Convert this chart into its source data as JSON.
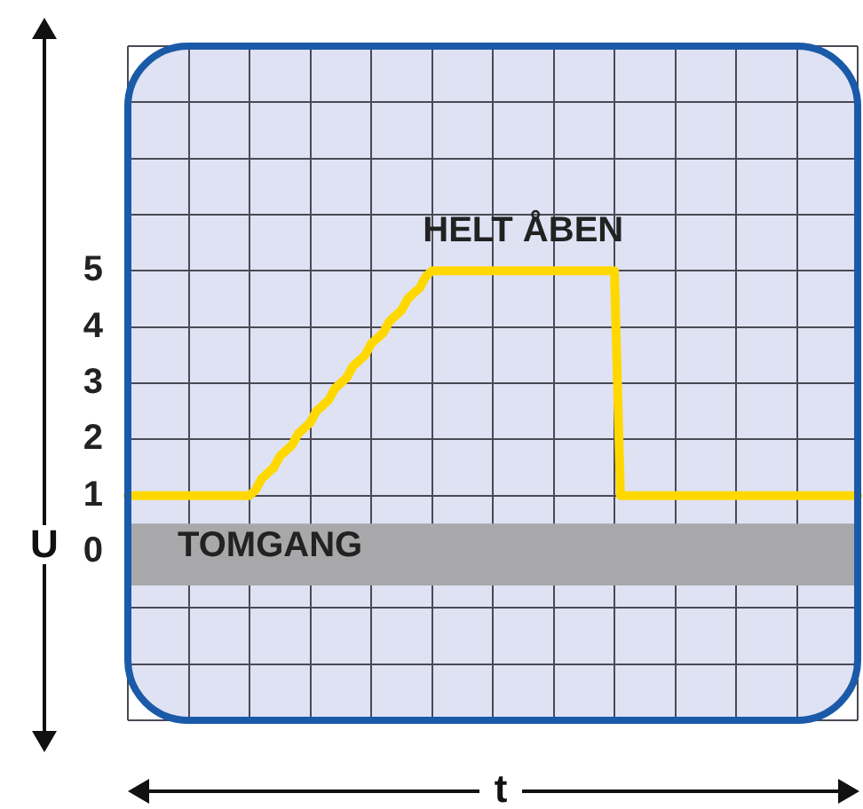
{
  "chart_data": {
    "type": "line",
    "xlabel": "t",
    "ylabel": "U",
    "categories": [
      null,
      null,
      null,
      null,
      null,
      null,
      null,
      null,
      null,
      null,
      null,
      null,
      null,
      null,
      null,
      null,
      null,
      null,
      null,
      null,
      null,
      null,
      null,
      null,
      null,
      null,
      null,
      null,
      null,
      null,
      null,
      null,
      null,
      null,
      null,
      null,
      null,
      null,
      null,
      null,
      null,
      null,
      null,
      null,
      null,
      null,
      null,
      null,
      null,
      null,
      null,
      null,
      null,
      null,
      null,
      null,
      null,
      null,
      null,
      null,
      null,
      null,
      null,
      null,
      null,
      null,
      null,
      null,
      null,
      null,
      null,
      null,
      null,
      null,
      null,
      null,
      null,
      null,
      null,
      null,
      null,
      null,
      null,
      null,
      null,
      null,
      null,
      null,
      null,
      null,
      null,
      null,
      null,
      null,
      null,
      null,
      null,
      null,
      null,
      null,
      null,
      null,
      null,
      null,
      null,
      null,
      null,
      null,
      null,
      null,
      null,
      null,
      null,
      null,
      null,
      null,
      null,
      null,
      null,
      null,
      null
    ],
    "series": [
      {
        "color": "#ffd800",
        "values": [
          1,
          1,
          1,
          1,
          1,
          1,
          1,
          1,
          1,
          1,
          1,
          1,
          1,
          1,
          1,
          1,
          1,
          1,
          1,
          1,
          1,
          1.1,
          1.3,
          1.4,
          1.5,
          1.7,
          1.8,
          1.9,
          2.1,
          2.2,
          2.3,
          2.5,
          2.6,
          2.7,
          2.9,
          3,
          3.1,
          3.3,
          3.4,
          3.5,
          3.7,
          3.8,
          3.9,
          4.1,
          4.2,
          4.3,
          4.5,
          4.6,
          4.7,
          4.9,
          5,
          5,
          5,
          5,
          5,
          5,
          5,
          5,
          5,
          5,
          5,
          5,
          5,
          5,
          5,
          5,
          5,
          5,
          5,
          5,
          5,
          5,
          5,
          5,
          5,
          5,
          5,
          5,
          5,
          5,
          5,
          1,
          1,
          1,
          1,
          1,
          1,
          1,
          1,
          1,
          1,
          1,
          1,
          1,
          1,
          1,
          1,
          1,
          1,
          1,
          1,
          1,
          1,
          1,
          1,
          1,
          1,
          1,
          1,
          1,
          1,
          1,
          1,
          1,
          1,
          1,
          1,
          1,
          1,
          1,
          1
        ]
      }
    ],
    "ylim": [
      -3,
      9
    ],
    "yticks": [
      {
        "value": -3,
        "label": null
      },
      {
        "value": -2,
        "label": null
      },
      {
        "value": -1,
        "label": null
      },
      0,
      1,
      2,
      3,
      4,
      5,
      {
        "value": 6,
        "label": null
      },
      {
        "value": 7,
        "label": null
      },
      {
        "value": 8,
        "label": null
      },
      {
        "value": 9,
        "label": null
      }
    ],
    "grid": true,
    "tick_labels": "y",
    "marker": "none",
    "line_style": "solid",
    "bands": [
      {
        "axis": "y",
        "from": -0.6,
        "to": 0.5,
        "label": "TOMGANG",
        "color": "#a8a8aa"
      }
    ],
    "annotations": [
      {
        "text": "HELT ÅBEN",
        "y": 5
      }
    ]
  }
}
